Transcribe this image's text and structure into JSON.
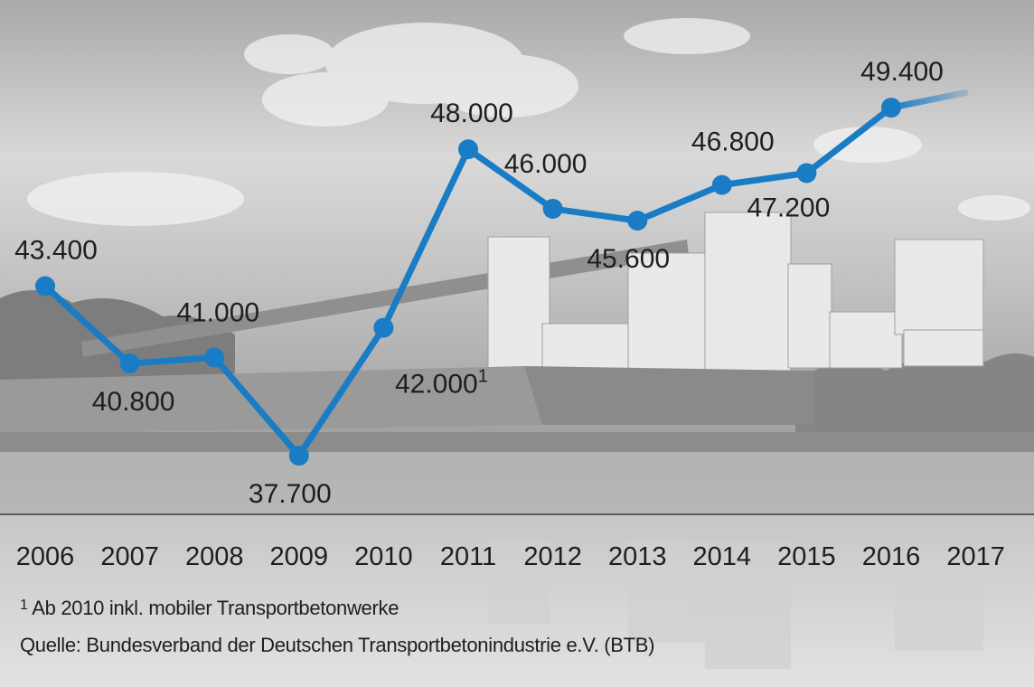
{
  "chart_data": {
    "type": "line",
    "categories": [
      "2006",
      "2007",
      "2008",
      "2009",
      "2010",
      "2011",
      "2012",
      "2013",
      "2014",
      "2015",
      "2016",
      "2017"
    ],
    "series": [
      {
        "values": [
          43400,
          40800,
          41000,
          37700,
          42000,
          48000,
          46000,
          45600,
          46800,
          47200,
          49400,
          null
        ],
        "labels": [
          "43.400",
          "40.800",
          "41.000",
          "37.700",
          "42.000",
          "48.000",
          "46.000",
          "45.600",
          "46.800",
          "47.200",
          "49.400",
          ""
        ],
        "label_notes": [
          "",
          "",
          "",
          "",
          "1",
          "",
          "",
          "",
          "",
          "",
          "",
          ""
        ]
      }
    ],
    "trend_end_estimate": 49900,
    "ylim": [
      36000,
      50800
    ],
    "line_color": "#1a7cc4",
    "grid": false,
    "legend": "none"
  },
  "footnotes": {
    "note_marker": "1",
    "note_text": "Ab 2010 inkl. mobiler Transportbetonwerke",
    "source": "Quelle: Bundesverband der Deutschen Transportbetonindustrie e.V. (BTB)"
  }
}
